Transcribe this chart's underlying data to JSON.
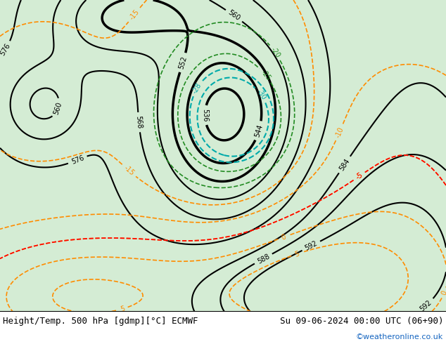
{
  "title_left": "Height/Temp. 500 hPa [gdmp][°C] ECMWF",
  "title_right": "Su 09-06-2024 00:00 UTC (06+90)",
  "credit": "©weatheronline.co.uk",
  "bg_color": "#d4ecd4",
  "bottom_bar_color": "#f0f0f0",
  "title_fontsize": 9,
  "credit_color": "#1565c0",
  "figsize": [
    6.34,
    4.9
  ],
  "dpi": 100,
  "height_levels": [
    536,
    544,
    552,
    560,
    568,
    576,
    584,
    588,
    592
  ],
  "temp_orange_levels": [
    -15,
    -10,
    -5,
    0,
    5,
    10
  ],
  "temp_green_levels": [
    -20,
    -25
  ],
  "temp_cyan_levels": [
    -30,
    -28
  ],
  "temp_red_levels": [
    -5
  ]
}
